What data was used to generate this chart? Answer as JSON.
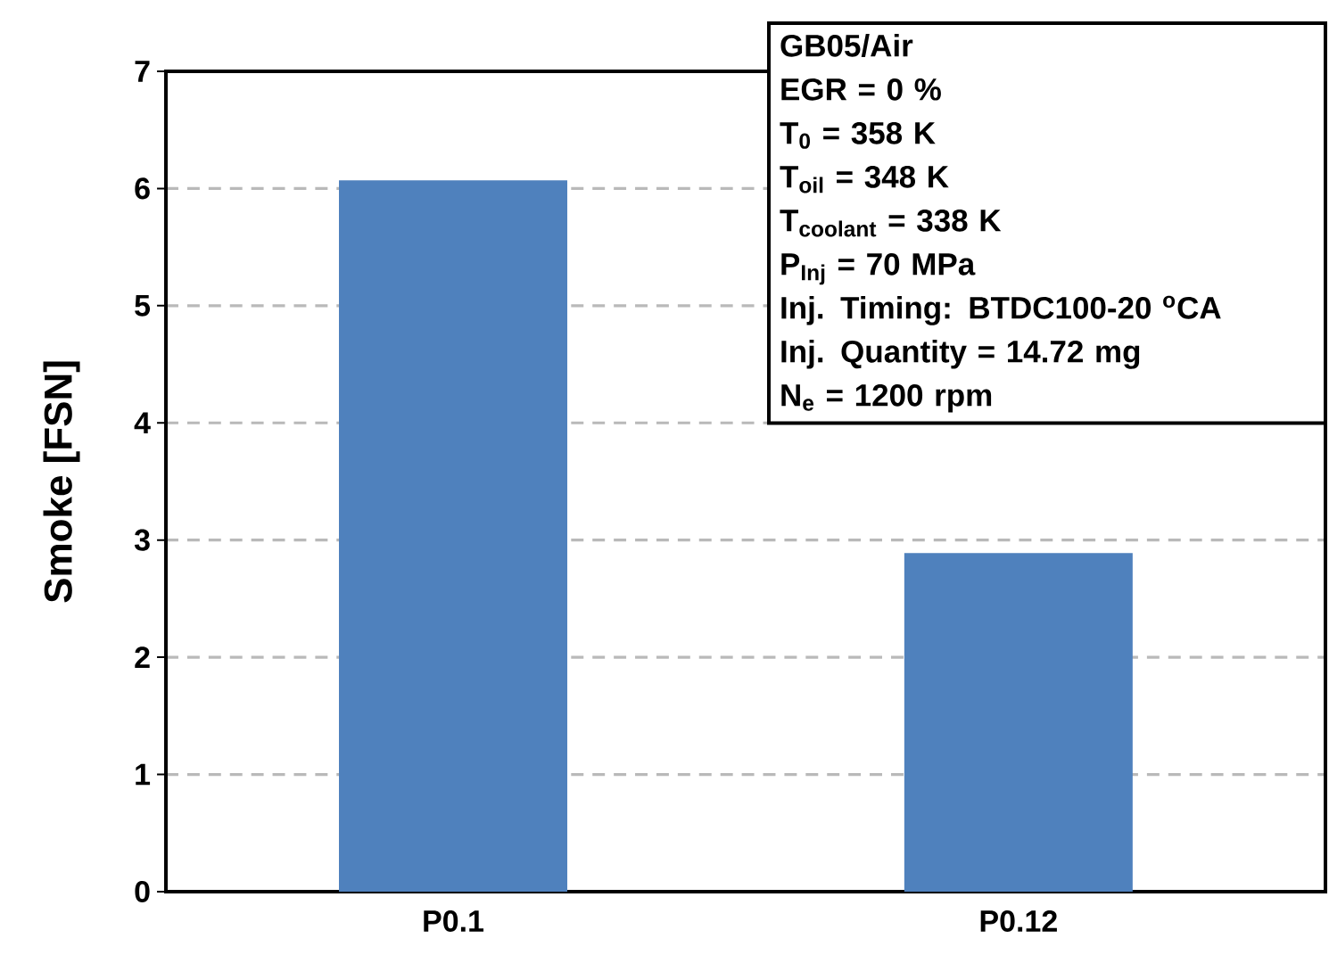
{
  "chart_data": {
    "type": "bar",
    "ylabel": "Smoke [FSN]",
    "categories": [
      "P0.1",
      "P0.12"
    ],
    "values": [
      6.07,
      2.89
    ],
    "color": "#4f81bd",
    "ylim": [
      0,
      7
    ],
    "yticks": [
      0,
      1,
      2,
      3,
      4,
      5,
      6,
      7
    ],
    "grid": "y",
    "annotations": [
      "GB05/Air",
      "EGR = 0 %",
      "T$_{0}$ = 358 K",
      "T$_{oil}$ = 348 K",
      "T$_{coolant}$ = 338 K",
      "P$_{Inj}$ = 70 MPa",
      "Inj. Timing:  BTDC100-20 $^{o}$CA",
      "Inj. Quantity = 14.72 mg",
      "N$_{e}$ = 1200 rpm"
    ]
  }
}
